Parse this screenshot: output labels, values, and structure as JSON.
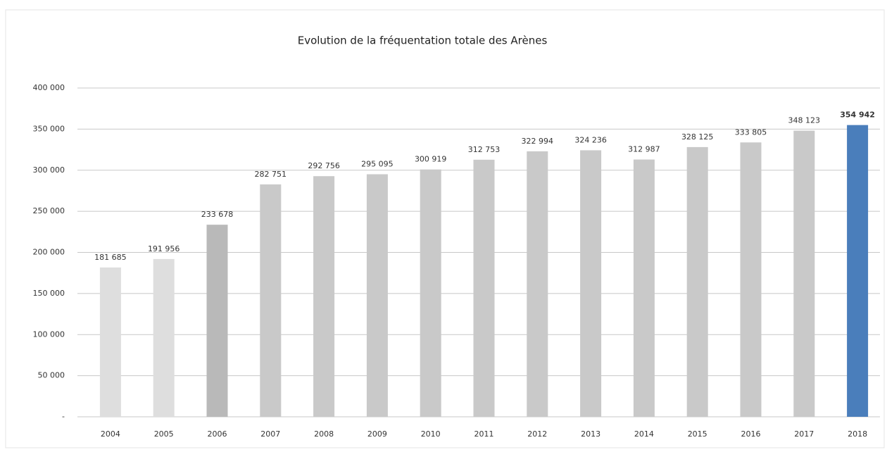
{
  "chart_data": {
    "type": "bar",
    "title": "Evolution de la fréquentation totale des Arènes",
    "categories": [
      "2004",
      "2005",
      "2006",
      "2007",
      "2008",
      "2009",
      "2010",
      "2011",
      "2012",
      "2013",
      "2014",
      "2015",
      "2016",
      "2017",
      "2018"
    ],
    "values": [
      181685,
      191956,
      233678,
      282751,
      292756,
      295095,
      300919,
      312753,
      322994,
      324236,
      312987,
      328125,
      333805,
      348123,
      354942
    ],
    "value_labels": [
      "181 685",
      "191 956",
      "233 678",
      "282 751",
      "292 756",
      "295 095",
      "300 919",
      "312 753",
      "322 994",
      "324 236",
      "312 987",
      "328 125",
      "333 805",
      "348 123",
      "354 942"
    ],
    "colors": [
      "#dedede",
      "#dedede",
      "#b9b9b9",
      "#c9c9c9",
      "#c9c9c9",
      "#c9c9c9",
      "#c9c9c9",
      "#c9c9c9",
      "#c9c9c9",
      "#c9c9c9",
      "#c9c9c9",
      "#c9c9c9",
      "#c9c9c9",
      "#c9c9c9",
      "#4a7ebb"
    ],
    "ylim": [
      0,
      400000
    ],
    "yticks": [
      {
        "value": 0,
        "label": "-"
      },
      {
        "value": 50000,
        "label": "50 000"
      },
      {
        "value": 100000,
        "label": "100 000"
      },
      {
        "value": 150000,
        "label": "150 000"
      },
      {
        "value": 200000,
        "label": "200 000"
      },
      {
        "value": 250000,
        "label": "250 000"
      },
      {
        "value": 300000,
        "label": "300 000"
      },
      {
        "value": 350000,
        "label": "350 000"
      },
      {
        "value": 400000,
        "label": "400 000"
      }
    ],
    "grid": true
  }
}
